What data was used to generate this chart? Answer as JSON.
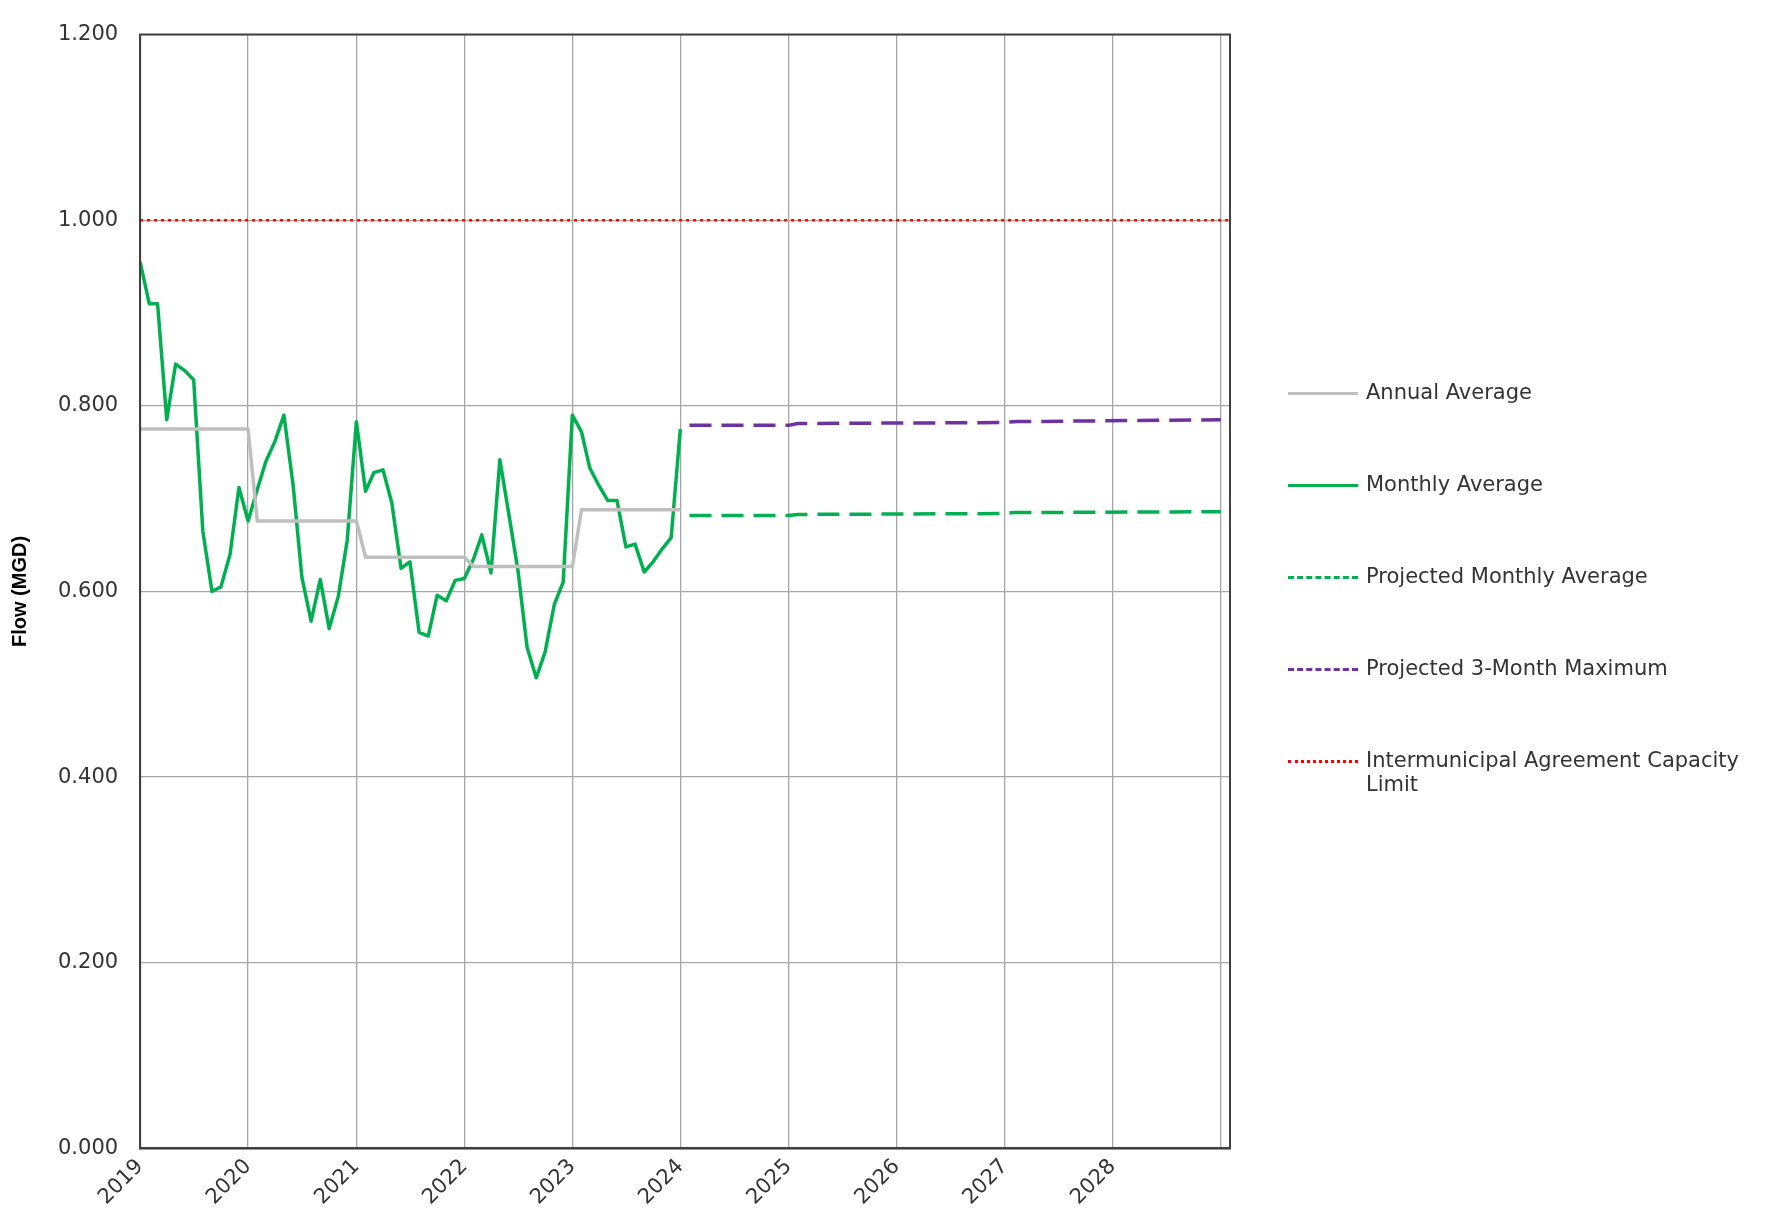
{
  "chart_data": {
    "type": "line",
    "ylabel": "Flow (MGD)",
    "xlim": [
      "2019-01",
      "2029-02"
    ],
    "xticks": [
      "2019",
      "2020",
      "2021",
      "2022",
      "2023",
      "2024",
      "2025",
      "2026",
      "2027",
      "2028",
      {
        "value": "2029",
        "label": null
      }
    ],
    "ylim": [
      0,
      1.2
    ],
    "yticks": [
      {
        "value": 0,
        "label": "0.000"
      },
      {
        "value": 0.2,
        "label": "0.200"
      },
      {
        "value": 0.4,
        "label": "0.400"
      },
      {
        "value": 0.6,
        "label": "0.600"
      },
      {
        "value": 0.8,
        "label": "0.800"
      },
      {
        "value": 1,
        "label": "1.000"
      },
      {
        "value": 1.2,
        "label": "1.200"
      }
    ],
    "grid": true,
    "legend": "right",
    "marker": "none",
    "x": [
      "2019-01",
      "2019-02",
      "2019-03",
      "2019-04",
      "2019-05",
      "2019-06",
      "2019-07",
      "2019-08",
      "2019-09",
      "2019-10",
      "2019-11",
      "2019-12",
      "2020-01",
      "2020-02",
      "2020-03",
      "2020-04",
      "2020-05",
      "2020-06",
      "2020-07",
      "2020-08",
      "2020-09",
      "2020-10",
      "2020-11",
      "2020-12",
      "2021-01",
      "2021-02",
      "2021-03",
      "2021-04",
      "2021-05",
      "2021-06",
      "2021-07",
      "2021-08",
      "2021-09",
      "2021-10",
      "2021-11",
      "2021-12",
      "2022-01",
      "2022-02",
      "2022-03",
      "2022-04",
      "2022-05",
      "2022-06",
      "2022-07",
      "2022-08",
      "2022-09",
      "2022-10",
      "2022-11",
      "2022-12",
      "2023-01",
      "2023-02",
      "2023-03",
      "2023-04",
      "2023-05",
      "2023-06",
      "2023-07",
      "2023-08",
      "2023-09",
      "2023-10",
      "2023-11",
      "2023-12",
      "2024-01"
    ],
    "series": [
      {
        "name": "Annual Average",
        "color": "#bfbfbf",
        "line_style": "solid",
        "values": [
          0.775,
          0.775,
          0.775,
          0.775,
          0.775,
          0.775,
          0.775,
          0.775,
          0.775,
          0.775,
          0.775,
          0.775,
          0.775,
          0.676,
          0.676,
          0.676,
          0.676,
          0.676,
          0.676,
          0.676,
          0.676,
          0.676,
          0.676,
          0.676,
          0.676,
          0.637,
          0.637,
          0.637,
          0.637,
          0.637,
          0.637,
          0.637,
          0.637,
          0.637,
          0.637,
          0.637,
          0.637,
          0.627,
          0.627,
          0.627,
          0.627,
          0.627,
          0.627,
          0.627,
          0.627,
          0.627,
          0.627,
          0.627,
          0.627,
          0.688,
          0.688,
          0.688,
          0.688,
          0.688,
          0.688,
          0.688,
          0.688,
          0.688,
          0.688,
          0.688,
          0.688
        ]
      },
      {
        "name": "Monthly Average",
        "color": "#00b050",
        "line_style": "solid",
        "values": [
          0.955,
          0.91,
          0.91,
          0.785,
          0.845,
          0.838,
          0.828,
          0.665,
          0.6,
          0.605,
          0.64,
          0.712,
          0.676,
          0.71,
          0.74,
          0.762,
          0.79,
          0.715,
          0.615,
          0.568,
          0.613,
          0.56,
          0.595,
          0.655,
          0.783,
          0.708,
          0.728,
          0.731,
          0.695,
          0.625,
          0.632,
          0.556,
          0.552,
          0.596,
          0.59,
          0.612,
          0.614,
          0.635,
          0.661,
          0.62,
          0.742,
          0.682,
          0.623,
          0.54,
          0.507,
          0.535,
          0.586,
          0.61,
          0.79,
          0.772,
          0.733,
          0.714,
          0.698,
          0.698,
          0.648,
          0.651,
          0.621,
          0.632,
          0.646,
          0.658,
          0.775
        ]
      },
      {
        "name": "Projected Monthly Average",
        "color": "#00b050",
        "line_style": "dashed",
        "x": [
          "2024-02",
          "2025-01",
          "2025-02",
          "2027-01",
          "2027-02",
          "2029-01"
        ],
        "values": [
          0.682,
          0.682,
          0.683,
          0.684,
          0.685,
          0.686
        ]
      },
      {
        "name": "Projected 3-Month Maximum",
        "color": "#7030a0",
        "line_style": "dashed",
        "x": [
          "2024-02",
          "2025-01",
          "2025-02",
          "2027-01",
          "2027-02",
          "2029-01"
        ],
        "values": [
          0.779,
          0.779,
          0.781,
          0.782,
          0.783,
          0.785
        ]
      }
    ],
    "ref_lines": [
      {
        "axis": "y",
        "value": 1,
        "label": "Intermunicipal Agreement Capacity Limit",
        "color": "#ff0000",
        "line_style": "dotted"
      }
    ]
  }
}
